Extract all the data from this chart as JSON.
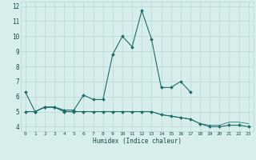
{
  "xlabel": "Humidex (Indice chaleur)",
  "x": [
    0,
    1,
    2,
    3,
    4,
    5,
    6,
    7,
    8,
    9,
    10,
    11,
    12,
    13,
    14,
    15,
    16,
    17,
    18,
    19,
    20,
    21,
    22,
    23
  ],
  "line1": [
    6.3,
    5.0,
    5.3,
    5.3,
    5.1,
    5.1,
    6.1,
    5.8,
    5.8,
    8.8,
    10.0,
    9.3,
    11.7,
    9.8,
    6.6,
    6.6,
    7.0,
    6.3,
    null,
    null,
    null,
    null,
    null,
    null
  ],
  "line2": [
    5.0,
    5.0,
    5.3,
    5.3,
    5.0,
    5.0,
    5.0,
    5.0,
    5.0,
    5.0,
    5.0,
    5.0,
    5.0,
    5.0,
    4.8,
    4.7,
    4.6,
    4.5,
    4.2,
    4.0,
    4.0,
    4.1,
    4.1,
    4.0
  ],
  "line3": [
    5.0,
    5.0,
    5.3,
    5.3,
    5.0,
    5.0,
    5.0,
    5.0,
    5.0,
    5.0,
    5.0,
    5.0,
    5.0,
    5.0,
    4.8,
    4.7,
    4.6,
    4.5,
    4.2,
    4.1,
    4.1,
    4.3,
    4.3,
    4.2
  ],
  "ylim": [
    3.7,
    12.3
  ],
  "xlim": [
    -0.5,
    23.5
  ],
  "yticks": [
    4,
    5,
    6,
    7,
    8,
    9,
    10,
    11,
    12
  ],
  "xticks": [
    0,
    1,
    2,
    3,
    4,
    5,
    6,
    7,
    8,
    9,
    10,
    11,
    12,
    13,
    14,
    15,
    16,
    17,
    18,
    19,
    20,
    21,
    22,
    23
  ],
  "bg_color": "#d8eeed",
  "grid_color": "#b8d8d5",
  "line_color": "#1a6e6a",
  "font_color": "#1a4a4a",
  "lw": 0.8,
  "ms": 2.0
}
